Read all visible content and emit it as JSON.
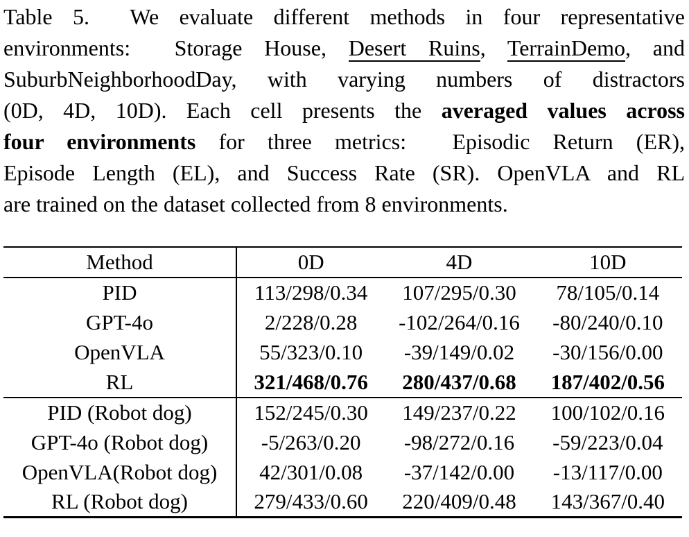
{
  "page": {
    "background_color": "#ffffff",
    "text_color": "#000000"
  },
  "caption": {
    "label": "Table 5.",
    "lines": [
      {
        "segs": [
          {
            "t": "Table 5.  We evaluate different methods in four representative"
          }
        ]
      },
      {
        "segs": [
          {
            "t": "environments:  "
          },
          {
            "t": "Storage House"
          },
          {
            "t": ", "
          },
          {
            "t": "Desert Ruins"
          },
          {
            "t": ", "
          },
          {
            "t": "TerrainDemo"
          },
          {
            "t": ", and"
          }
        ]
      },
      {
        "segs": [
          {
            "t": "SuburbNeighborhoodDay"
          },
          {
            "t": ", with varying numbers of distractors"
          }
        ]
      },
      {
        "segs": [
          {
            "t": "(0D, 4D, 10D). Each cell presents the "
          },
          {
            "t": "averaged values across"
          }
        ]
      },
      {
        "segs": [
          {
            "t": "four environments"
          },
          {
            "t": " for three metrics:  Episodic Return (ER),"
          }
        ]
      },
      {
        "segs": [
          {
            "t": "Episode Length (EL), and Success Rate (SR). OpenVLA and RL"
          }
        ]
      },
      {
        "segs": [
          {
            "t": "are trained on the dataset collected from 8 environments."
          }
        ]
      }
    ]
  },
  "table": {
    "headers": [
      "Method",
      "0D",
      "4D",
      "10D"
    ],
    "rows": [
      {
        "method": "PID",
        "values": [
          "113/298/0.34",
          "107/295/0.30",
          "78/105/0.14"
        ]
      },
      {
        "method": "GPT-4o",
        "values": [
          "2/228/0.28",
          "-102/264/0.16",
          "-80/240/0.10"
        ]
      },
      {
        "method": "OpenVLA",
        "values": [
          "55/323/0.10",
          "-39/149/0.02",
          "-30/156/0.00"
        ]
      },
      {
        "method": "RL",
        "values": [
          "321/468/0.76",
          "280/437/0.68",
          "187/402/0.56"
        ]
      },
      {
        "method": "PID (Robot dog)",
        "values": [
          "152/245/0.30",
          "149/237/0.22",
          "100/102/0.16"
        ]
      },
      {
        "method": "GPT-4o (Robot dog)",
        "values": [
          "-5/263/0.20",
          "-98/272/0.16",
          "-59/223/0.04"
        ]
      },
      {
        "method": "OpenVLA(Robot dog)",
        "values": [
          "42/301/0.08",
          "-37/142/0.00",
          "-13/117/0.00"
        ]
      },
      {
        "method": "RL (Robot dog)",
        "values": [
          "279/433/0.60",
          "220/409/0.48",
          "143/367/0.40"
        ]
      }
    ]
  }
}
